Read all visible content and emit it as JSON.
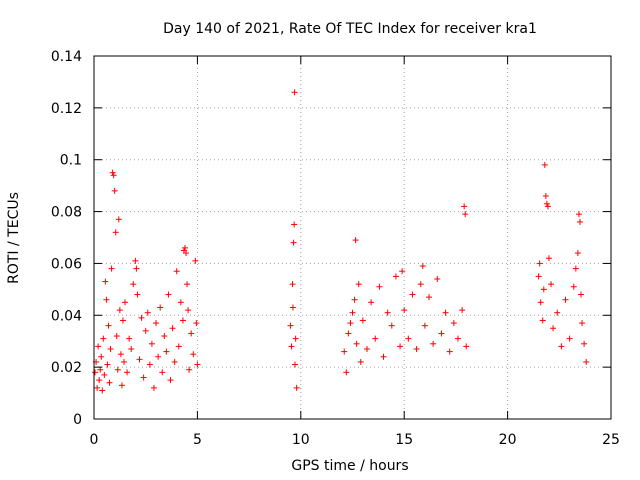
{
  "chart_data": {
    "type": "scatter",
    "title": "Day 140 of 2021, Rate Of TEC Index for receiver kra1",
    "xlabel": "GPS time / hours",
    "ylabel": "ROTI / TECUs",
    "xlim": [
      0,
      25
    ],
    "ylim": [
      0,
      0.14
    ],
    "xticks": [
      "0",
      "5",
      "10",
      "15",
      "20",
      "25"
    ],
    "xtick_values": [
      0,
      5,
      10,
      15,
      20,
      25
    ],
    "yticks": [
      "0",
      "0.02",
      "0.04",
      "0.06",
      "0.08",
      "0.1",
      "0.12",
      "0.14"
    ],
    "ytick_values": [
      0,
      0.02,
      0.04,
      0.06,
      0.08,
      0.1,
      0.12,
      0.14
    ],
    "grid": true,
    "marker": "+",
    "color": "#ff0000",
    "series": [
      {
        "name": "ROTI",
        "points": [
          [
            0.05,
            0.018
          ],
          [
            0.1,
            0.022
          ],
          [
            0.15,
            0.012
          ],
          [
            0.2,
            0.028
          ],
          [
            0.25,
            0.015
          ],
          [
            0.3,
            0.019
          ],
          [
            0.35,
            0.024
          ],
          [
            0.4,
            0.011
          ],
          [
            0.45,
            0.031
          ],
          [
            0.5,
            0.017
          ],
          [
            0.55,
            0.053
          ],
          [
            0.6,
            0.046
          ],
          [
            0.65,
            0.021
          ],
          [
            0.7,
            0.036
          ],
          [
            0.75,
            0.014
          ],
          [
            0.8,
            0.027
          ],
          [
            0.85,
            0.058
          ],
          [
            0.9,
            0.095
          ],
          [
            0.95,
            0.094
          ],
          [
            1.0,
            0.088
          ],
          [
            1.05,
            0.072
          ],
          [
            1.1,
            0.032
          ],
          [
            1.15,
            0.019
          ],
          [
            1.2,
            0.077
          ],
          [
            1.25,
            0.042
          ],
          [
            1.3,
            0.025
          ],
          [
            1.35,
            0.013
          ],
          [
            1.4,
            0.038
          ],
          [
            1.45,
            0.022
          ],
          [
            1.5,
            0.045
          ],
          [
            1.6,
            0.018
          ],
          [
            1.7,
            0.031
          ],
          [
            1.8,
            0.027
          ],
          [
            1.9,
            0.052
          ],
          [
            2.0,
            0.061
          ],
          [
            2.05,
            0.058
          ],
          [
            2.1,
            0.048
          ],
          [
            2.2,
            0.023
          ],
          [
            2.3,
            0.039
          ],
          [
            2.4,
            0.016
          ],
          [
            2.5,
            0.034
          ],
          [
            2.6,
            0.041
          ],
          [
            2.7,
            0.021
          ],
          [
            2.8,
            0.029
          ],
          [
            2.9,
            0.012
          ],
          [
            3.0,
            0.037
          ],
          [
            3.1,
            0.024
          ],
          [
            3.2,
            0.043
          ],
          [
            3.3,
            0.018
          ],
          [
            3.4,
            0.032
          ],
          [
            3.5,
            0.026
          ],
          [
            3.6,
            0.048
          ],
          [
            3.7,
            0.015
          ],
          [
            3.8,
            0.035
          ],
          [
            3.9,
            0.022
          ],
          [
            4.0,
            0.057
          ],
          [
            4.1,
            0.028
          ],
          [
            4.2,
            0.045
          ],
          [
            4.3,
            0.038
          ],
          [
            4.35,
            0.065
          ],
          [
            4.4,
            0.066
          ],
          [
            4.45,
            0.064
          ],
          [
            4.5,
            0.052
          ],
          [
            4.55,
            0.042
          ],
          [
            4.6,
            0.019
          ],
          [
            4.7,
            0.033
          ],
          [
            4.8,
            0.025
          ],
          [
            4.9,
            0.061
          ],
          [
            4.95,
            0.037
          ],
          [
            5.0,
            0.021
          ],
          [
            9.5,
            0.036
          ],
          [
            9.55,
            0.028
          ],
          [
            9.6,
            0.052
          ],
          [
            9.62,
            0.043
          ],
          [
            9.65,
            0.068
          ],
          [
            9.68,
            0.075
          ],
          [
            9.7,
            0.126
          ],
          [
            9.72,
            0.021
          ],
          [
            9.75,
            0.031
          ],
          [
            9.8,
            0.012
          ],
          [
            12.1,
            0.026
          ],
          [
            12.2,
            0.018
          ],
          [
            12.3,
            0.033
          ],
          [
            12.4,
            0.037
          ],
          [
            12.5,
            0.041
          ],
          [
            12.6,
            0.046
          ],
          [
            12.65,
            0.069
          ],
          [
            12.7,
            0.029
          ],
          [
            12.8,
            0.052
          ],
          [
            12.9,
            0.022
          ],
          [
            13.0,
            0.038
          ],
          [
            13.2,
            0.027
          ],
          [
            13.4,
            0.045
          ],
          [
            13.6,
            0.031
          ],
          [
            13.8,
            0.051
          ],
          [
            14.0,
            0.024
          ],
          [
            14.2,
            0.041
          ],
          [
            14.4,
            0.036
          ],
          [
            14.6,
            0.055
          ],
          [
            14.8,
            0.028
          ],
          [
            14.9,
            0.057
          ],
          [
            15.0,
            0.042
          ],
          [
            15.2,
            0.031
          ],
          [
            15.4,
            0.048
          ],
          [
            15.6,
            0.027
          ],
          [
            15.8,
            0.052
          ],
          [
            15.9,
            0.059
          ],
          [
            16.0,
            0.036
          ],
          [
            16.2,
            0.047
          ],
          [
            16.4,
            0.029
          ],
          [
            16.6,
            0.054
          ],
          [
            16.8,
            0.033
          ],
          [
            17.0,
            0.041
          ],
          [
            17.2,
            0.026
          ],
          [
            17.4,
            0.037
          ],
          [
            17.6,
            0.031
          ],
          [
            17.8,
            0.042
          ],
          [
            17.9,
            0.082
          ],
          [
            17.95,
            0.079
          ],
          [
            18.0,
            0.028
          ],
          [
            21.5,
            0.055
          ],
          [
            21.55,
            0.06
          ],
          [
            21.6,
            0.045
          ],
          [
            21.7,
            0.038
          ],
          [
            21.75,
            0.05
          ],
          [
            21.8,
            0.098
          ],
          [
            21.85,
            0.086
          ],
          [
            21.9,
            0.083
          ],
          [
            21.95,
            0.082
          ],
          [
            22.0,
            0.062
          ],
          [
            22.1,
            0.052
          ],
          [
            22.2,
            0.035
          ],
          [
            22.4,
            0.041
          ],
          [
            22.6,
            0.028
          ],
          [
            22.8,
            0.046
          ],
          [
            23.0,
            0.031
          ],
          [
            23.2,
            0.051
          ],
          [
            23.3,
            0.058
          ],
          [
            23.4,
            0.064
          ],
          [
            23.45,
            0.079
          ],
          [
            23.5,
            0.076
          ],
          [
            23.55,
            0.048
          ],
          [
            23.6,
            0.037
          ],
          [
            23.7,
            0.029
          ],
          [
            23.8,
            0.022
          ]
        ]
      }
    ]
  }
}
